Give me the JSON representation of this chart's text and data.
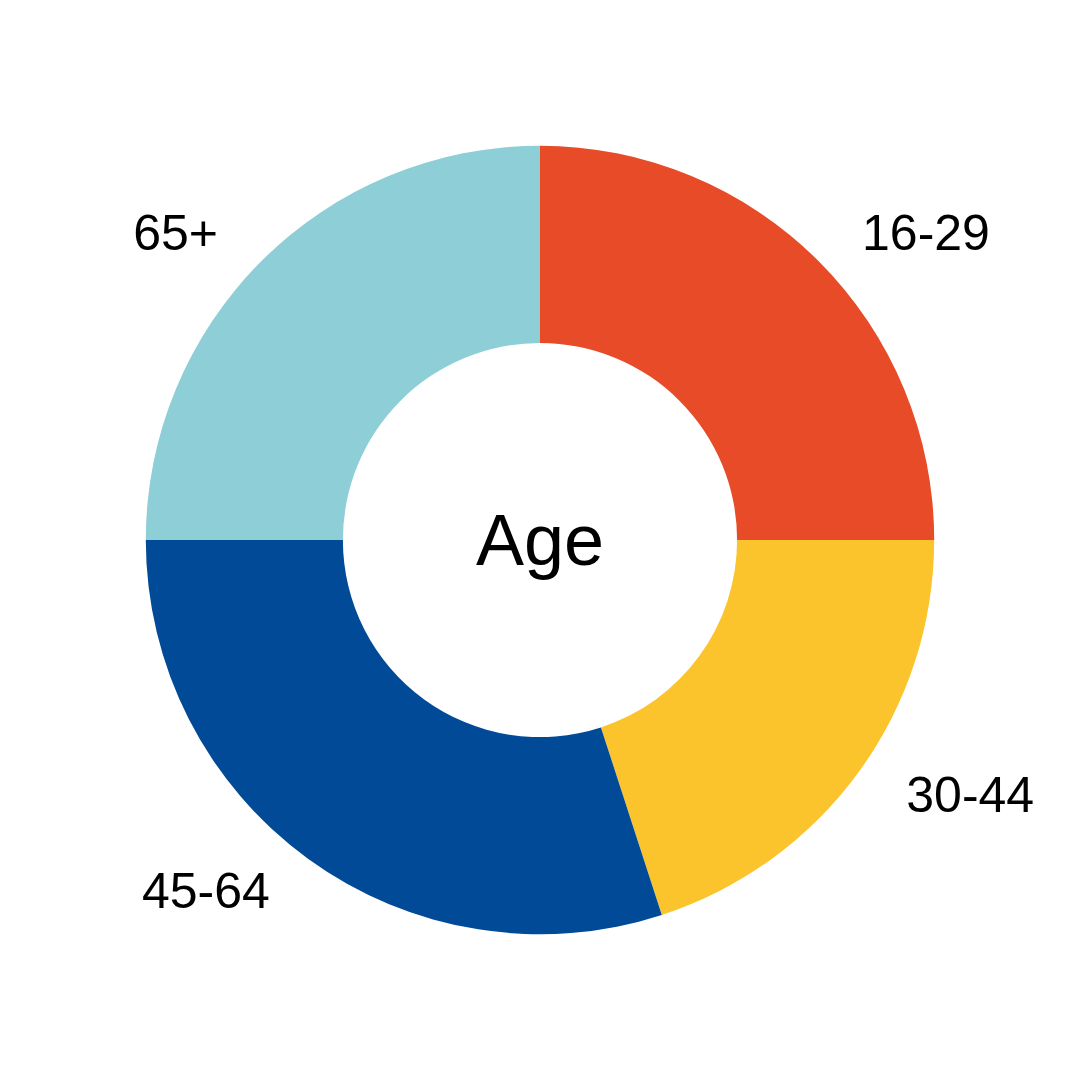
{
  "chart_data": {
    "type": "donut",
    "title": "Age",
    "categories": [
      "16-29",
      "30-44",
      "45-64",
      "65+"
    ],
    "values": [
      25,
      20,
      30,
      25
    ],
    "colors": [
      "#e84b28",
      "#fbc42c",
      "#004a98",
      "#8dced7"
    ],
    "legend": false
  }
}
